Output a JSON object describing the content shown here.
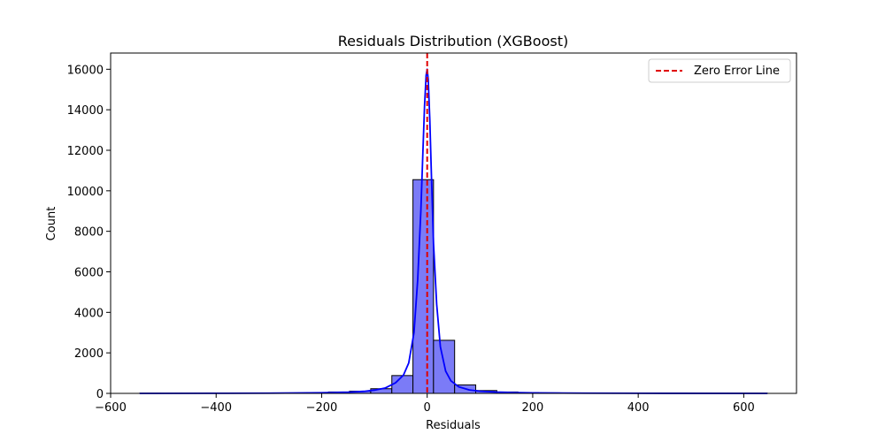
{
  "chart_data": {
    "type": "bar",
    "title": "Residuals Distribution (XGBoost)",
    "xlabel": "Residuals",
    "ylabel": "Count",
    "xlim": [
      -600,
      700
    ],
    "ylim": [
      0,
      16800
    ],
    "xticks": [
      -600,
      -400,
      -200,
      0,
      200,
      400,
      600
    ],
    "yticks": [
      0,
      2000,
      4000,
      6000,
      8000,
      10000,
      12000,
      14000,
      16000
    ],
    "grid": false,
    "legend": {
      "placement": "top-right",
      "entries": [
        "Zero Error Line"
      ]
    },
    "colors": {
      "bars": "#7b7bf7",
      "bar_edge": "#000000",
      "kde": "#0000ff",
      "zero_line": "#e00000"
    },
    "histogram": {
      "bin_width": 39.8,
      "bins": [
        {
          "x0": -545,
          "x1": -505,
          "count": 5
        },
        {
          "x0": -505,
          "x1": -465,
          "count": 5
        },
        {
          "x0": -465,
          "x1": -425,
          "count": 5
        },
        {
          "x0": -425,
          "x1": -386,
          "count": 5
        },
        {
          "x0": -386,
          "x1": -346,
          "count": 8
        },
        {
          "x0": -346,
          "x1": -306,
          "count": 10
        },
        {
          "x0": -306,
          "x1": -266,
          "count": 15
        },
        {
          "x0": -266,
          "x1": -226,
          "count": 20
        },
        {
          "x0": -226,
          "x1": -187,
          "count": 40
        },
        {
          "x0": -187,
          "x1": -147,
          "count": 70
        },
        {
          "x0": -147,
          "x1": -107,
          "count": 110
        },
        {
          "x0": -107,
          "x1": -67,
          "count": 230
        },
        {
          "x0": -67,
          "x1": -27,
          "count": 880
        },
        {
          "x0": -27,
          "x1": 12,
          "count": 10550
        },
        {
          "x0": 12,
          "x1": 52,
          "count": 2620
        },
        {
          "x0": 52,
          "x1": 92,
          "count": 420
        },
        {
          "x0": 92,
          "x1": 132,
          "count": 140
        },
        {
          "x0": 132,
          "x1": 172,
          "count": 70
        },
        {
          "x0": 172,
          "x1": 211,
          "count": 40
        },
        {
          "x0": 211,
          "x1": 251,
          "count": 25
        },
        {
          "x0": 251,
          "x1": 291,
          "count": 15
        },
        {
          "x0": 291,
          "x1": 331,
          "count": 10
        },
        {
          "x0": 331,
          "x1": 371,
          "count": 8
        },
        {
          "x0": 371,
          "x1": 410,
          "count": 5
        },
        {
          "x0": 410,
          "x1": 450,
          "count": 5
        },
        {
          "x0": 450,
          "x1": 490,
          "count": 5
        },
        {
          "x0": 490,
          "x1": 530,
          "count": 5
        },
        {
          "x0": 530,
          "x1": 570,
          "count": 5
        },
        {
          "x0": 570,
          "x1": 610,
          "count": 5
        },
        {
          "x0": 610,
          "x1": 645,
          "count": 5
        }
      ]
    },
    "kde": {
      "x": [
        -545,
        -400,
        -300,
        -200,
        -150,
        -120,
        -100,
        -80,
        -60,
        -45,
        -35,
        -25,
        -18,
        -12,
        -8,
        -5,
        -2,
        0,
        2,
        5,
        8,
        12,
        18,
        25,
        35,
        45,
        60,
        80,
        100,
        130,
        160,
        200,
        300,
        400,
        645
      ],
      "y": [
        0,
        5,
        10,
        30,
        60,
        100,
        160,
        260,
        520,
        900,
        1500,
        3000,
        5600,
        9000,
        12000,
        14200,
        15700,
        16000,
        15500,
        13500,
        10800,
        7400,
        4400,
        2300,
        1100,
        620,
        320,
        170,
        110,
        65,
        40,
        25,
        10,
        5,
        0
      ]
    },
    "zero_line": {
      "x": 0
    }
  }
}
